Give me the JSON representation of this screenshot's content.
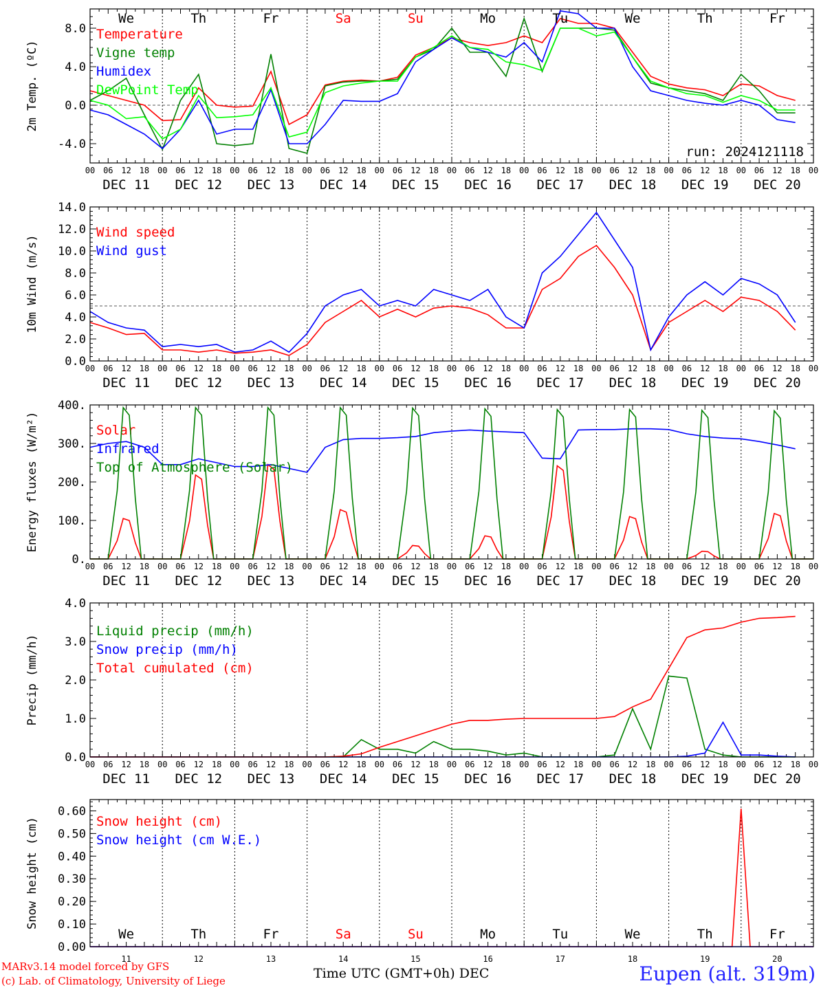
{
  "days_top": [
    "We",
    "Th",
    "Fr",
    "Sa",
    "Su",
    "Mo",
    "Tu",
    "We",
    "Th",
    "Fr"
  ],
  "weekend_days": [
    "Sa",
    "Su"
  ],
  "hour_labels": [
    "00",
    "06",
    "12",
    "18"
  ],
  "date_labels": [
    "DEC 11",
    "DEC 12",
    "DEC 13",
    "DEC 14",
    "DEC 15",
    "DEC 16",
    "DEC 17",
    "DEC 18",
    "DEC 19",
    "DEC 20"
  ],
  "day_numbers": [
    "11",
    "12",
    "13",
    "14",
    "15",
    "16",
    "17",
    "18",
    "19",
    "20"
  ],
  "run_label": "run: 2024121118",
  "xaxis_title": "Time UTC (GMT+0h) DEC",
  "station": "Eupen (alt. 319m)",
  "credit": [
    "MARv3.14 model forced by GFS",
    "(c) Lab. of Climatology, University of Liege"
  ],
  "colors": {
    "red": "#ff0000",
    "green": "#008000",
    "blue": "#0000ff",
    "light_green": "#00ff00",
    "weekend": "#ff0000"
  },
  "chart_data": [
    {
      "id": "temp",
      "type": "line",
      "ylabel": "2m Temp. (ºC)",
      "ylim": [
        -6,
        10
      ],
      "yticks": [
        -4,
        0,
        4,
        8
      ],
      "ytick_labels": [
        "-4.0",
        "0.0",
        "4.0",
        "8.0"
      ],
      "ref_line": 0,
      "days": 10,
      "grid": "vertical dotted at day boundaries",
      "x": [
        0,
        6,
        12,
        18,
        24,
        30,
        36,
        42,
        48,
        54,
        60,
        66,
        72,
        78,
        84,
        90,
        96,
        102,
        108,
        114,
        120,
        126,
        132,
        138,
        144,
        150,
        156,
        162,
        168,
        174,
        180,
        186,
        192,
        198,
        204,
        210,
        216,
        222,
        228,
        234
      ],
      "series": [
        {
          "name": "Temperature",
          "color": "#ff0000",
          "values": [
            1.5,
            1,
            0.5,
            0,
            -1.6,
            -1.5,
            1.8,
            0,
            -0.2,
            -0.1,
            3.5,
            -2,
            -1,
            2.1,
            2.5,
            2.6,
            2.5,
            2.9,
            5.2,
            6,
            7,
            6.5,
            6.2,
            6.5,
            7.2,
            6.5,
            9,
            8.5,
            8.5,
            8,
            5.5,
            3,
            2.2,
            1.8,
            1.6,
            1,
            2.2,
            2,
            1,
            0.5
          ]
        },
        {
          "name": "Vigne temp",
          "color": "#008000",
          "values": [
            0.5,
            1.5,
            2.8,
            -1,
            -4.6,
            0.5,
            3.2,
            -4,
            -4.2,
            -4,
            5.3,
            -4.5,
            -5,
            2,
            2.4,
            2.5,
            2.5,
            2.7,
            5,
            5.8,
            8,
            5.5,
            5.5,
            3,
            9,
            3.5,
            8,
            8,
            8,
            7.8,
            5,
            2.3,
            1.8,
            1.5,
            1.2,
            0.5,
            3.2,
            1.5,
            -0.8,
            -0.8
          ]
        },
        {
          "name": "Humidex",
          "color": "#0000ff",
          "values": [
            -0.5,
            -1,
            -2,
            -3,
            -4.5,
            -2.5,
            0.5,
            -3,
            -2.5,
            -2.5,
            1.6,
            -4,
            -4,
            -2,
            0.5,
            0.4,
            0.4,
            1.2,
            4.5,
            5.8,
            7,
            6,
            5.5,
            5,
            6.5,
            4.5,
            9.8,
            9.5,
            8,
            8,
            4,
            1.5,
            1,
            0.5,
            0.2,
            0,
            0.5,
            0,
            -1.5,
            -1.8
          ]
        },
        {
          "name": "DewPoint Temp",
          "color": "#00ff00",
          "values": [
            0.5,
            0,
            -1.4,
            -1.2,
            -3.5,
            -2.5,
            1,
            -1.3,
            -1.2,
            -1,
            1.8,
            -3.3,
            -2.8,
            1.3,
            2,
            2.3,
            2.5,
            2.5,
            5,
            6,
            7.2,
            6,
            5.8,
            4.5,
            4.2,
            3.6,
            8,
            8,
            7.2,
            7.6,
            5,
            2.5,
            1.8,
            1.2,
            1,
            0.3,
            1,
            0.5,
            -0.5,
            -0.5
          ]
        }
      ]
    },
    {
      "id": "wind",
      "type": "line",
      "ylabel": "10m Wind (m/s)",
      "ylim": [
        0,
        14
      ],
      "yticks": [
        0,
        2,
        4,
        6,
        8,
        10,
        12,
        14
      ],
      "ytick_labels": [
        "0.0",
        "2.0",
        "4.0",
        "6.0",
        "8.0",
        "10.0",
        "12.0",
        "14.0"
      ],
      "ref_line": 5,
      "days": 10,
      "x": [
        0,
        6,
        12,
        18,
        24,
        30,
        36,
        42,
        48,
        54,
        60,
        66,
        72,
        78,
        84,
        90,
        96,
        102,
        108,
        114,
        120,
        126,
        132,
        138,
        144,
        150,
        156,
        162,
        168,
        174,
        180,
        186,
        192,
        198,
        204,
        210,
        216,
        222,
        228,
        234
      ],
      "series": [
        {
          "name": "Wind speed",
          "color": "#ff0000",
          "values": [
            3.5,
            3,
            2.4,
            2.5,
            1,
            1,
            0.8,
            1,
            0.7,
            0.8,
            1,
            0.5,
            1.5,
            3.5,
            4.5,
            5.5,
            4,
            4.7,
            4,
            4.8,
            5,
            4.8,
            4.2,
            3,
            3,
            6.5,
            7.5,
            9.5,
            10.5,
            8.5,
            6,
            1,
            3.5,
            4.5,
            5.5,
            4.5,
            5.8,
            5.5,
            4.5,
            2.8
          ]
        },
        {
          "name": "Wind gust",
          "color": "#0000ff",
          "values": [
            4.5,
            3.5,
            3,
            2.8,
            1.3,
            1.5,
            1.3,
            1.5,
            0.8,
            1,
            1.8,
            0.8,
            2.5,
            5,
            6,
            6.5,
            5,
            5.5,
            5,
            6.5,
            6,
            5.5,
            6.5,
            4,
            3,
            8,
            9.5,
            11.5,
            13.5,
            11,
            8.5,
            1,
            4,
            6,
            7.2,
            6,
            7.5,
            7,
            6,
            3.5
          ]
        }
      ]
    },
    {
      "id": "energy",
      "type": "line",
      "ylabel": "Energy fluxes (W/m²)",
      "ylim": [
        0,
        400
      ],
      "yticks": [
        0,
        100,
        200,
        300,
        400
      ],
      "ytick_labels": [
        "0.",
        "100.",
        "200.",
        "300.",
        "400."
      ],
      "days": 10,
      "x_infrared": [
        0,
        6,
        12,
        18,
        24,
        30,
        36,
        42,
        48,
        54,
        60,
        66,
        72,
        78,
        84,
        90,
        96,
        102,
        108,
        114,
        120,
        126,
        132,
        138,
        144,
        150,
        156,
        162,
        168,
        174,
        180,
        186,
        192,
        198,
        204,
        210,
        216,
        222,
        228,
        234
      ],
      "series": [
        {
          "name": "Solar",
          "color": "#ff0000",
          "daily_peaks": [
            105,
            218,
            245,
            128,
            35,
            60,
            242,
            110,
            20,
            118
          ]
        },
        {
          "name": "Infrared",
          "color": "#0000ff",
          "values": [
            290,
            300,
            305,
            290,
            245,
            245,
            260,
            250,
            240,
            240,
            245,
            235,
            225,
            290,
            310,
            313,
            313,
            315,
            318,
            328,
            332,
            335,
            332,
            330,
            328,
            262,
            260,
            335,
            336,
            336,
            338,
            338,
            336,
            325,
            318,
            314,
            312,
            305,
            296,
            286
          ]
        },
        {
          "name": "Top of Atmosphere (Solar)",
          "color": "#008000",
          "daily_peaks": [
            393,
            393,
            393,
            393,
            392,
            390,
            388,
            388,
            386,
            385
          ]
        }
      ]
    },
    {
      "id": "precip",
      "type": "line",
      "ylabel": "Precip (mm/h)",
      "ylim": [
        0,
        4
      ],
      "yticks": [
        0,
        1,
        2,
        3,
        4
      ],
      "ytick_labels": [
        "0.0",
        "1.0",
        "2.0",
        "3.0",
        "4.0"
      ],
      "days": 10,
      "x": [
        0,
        6,
        12,
        18,
        24,
        30,
        36,
        42,
        48,
        54,
        60,
        66,
        72,
        78,
        84,
        90,
        96,
        102,
        108,
        114,
        120,
        126,
        132,
        138,
        144,
        150,
        156,
        162,
        168,
        174,
        180,
        186,
        192,
        198,
        204,
        210,
        216,
        222,
        228,
        234
      ],
      "series": [
        {
          "name": "Liquid precip (mm/h)",
          "color": "#008000",
          "values": [
            0,
            0,
            0,
            0,
            0,
            0,
            0,
            0,
            0,
            0,
            0,
            0,
            0,
            0,
            0,
            0.45,
            0.2,
            0.2,
            0.1,
            0.4,
            0.2,
            0.2,
            0.15,
            0.05,
            0.1,
            0,
            0,
            0,
            0,
            0.05,
            1.25,
            0.2,
            2.1,
            2.05,
            0.2,
            0.05,
            0,
            0,
            0,
            0
          ]
        },
        {
          "name": "Snow precip (mm/h)",
          "color": "#0000ff",
          "values": [
            0,
            0,
            0,
            0,
            0,
            0,
            0,
            0,
            0,
            0,
            0,
            0,
            0,
            0,
            0,
            0,
            0,
            0,
            0,
            0,
            0,
            0,
            0,
            0,
            0,
            0,
            0,
            0,
            0,
            0,
            0,
            0,
            0,
            0.02,
            0.1,
            0.9,
            0.05,
            0.05,
            0.02,
            0
          ]
        },
        {
          "name": "Total cumulated (cm)",
          "color": "#ff0000",
          "values": [
            0,
            0,
            0,
            0,
            0,
            0,
            0,
            0,
            0,
            0,
            0,
            0,
            0,
            0,
            0.02,
            0.08,
            0.25,
            0.4,
            0.55,
            0.7,
            0.85,
            0.95,
            0.95,
            0.98,
            1,
            1,
            1,
            1,
            1,
            1.05,
            1.3,
            1.5,
            2.3,
            3.1,
            3.3,
            3.35,
            3.5,
            3.6,
            3.62,
            3.65
          ]
        }
      ]
    },
    {
      "id": "snow",
      "type": "line",
      "ylabel": "Snow height (cm)",
      "ylim": [
        0,
        0.65
      ],
      "yticks": [
        0,
        0.1,
        0.2,
        0.3,
        0.4,
        0.5,
        0.6
      ],
      "ytick_labels": [
        "0.00",
        "0.10",
        "0.20",
        "0.30",
        "0.40",
        "0.50",
        "0.60"
      ],
      "days": 10,
      "x": [
        0,
        213,
        216,
        219,
        240
      ],
      "series": [
        {
          "name": "Snow height (cm)",
          "color": "#ff0000",
          "values": [
            0,
            0,
            0.61,
            0,
            0
          ]
        },
        {
          "name": "Snow height (cm W.E.)",
          "color": "#0000ff",
          "values": [
            0,
            0,
            0,
            0,
            0
          ]
        }
      ]
    }
  ]
}
